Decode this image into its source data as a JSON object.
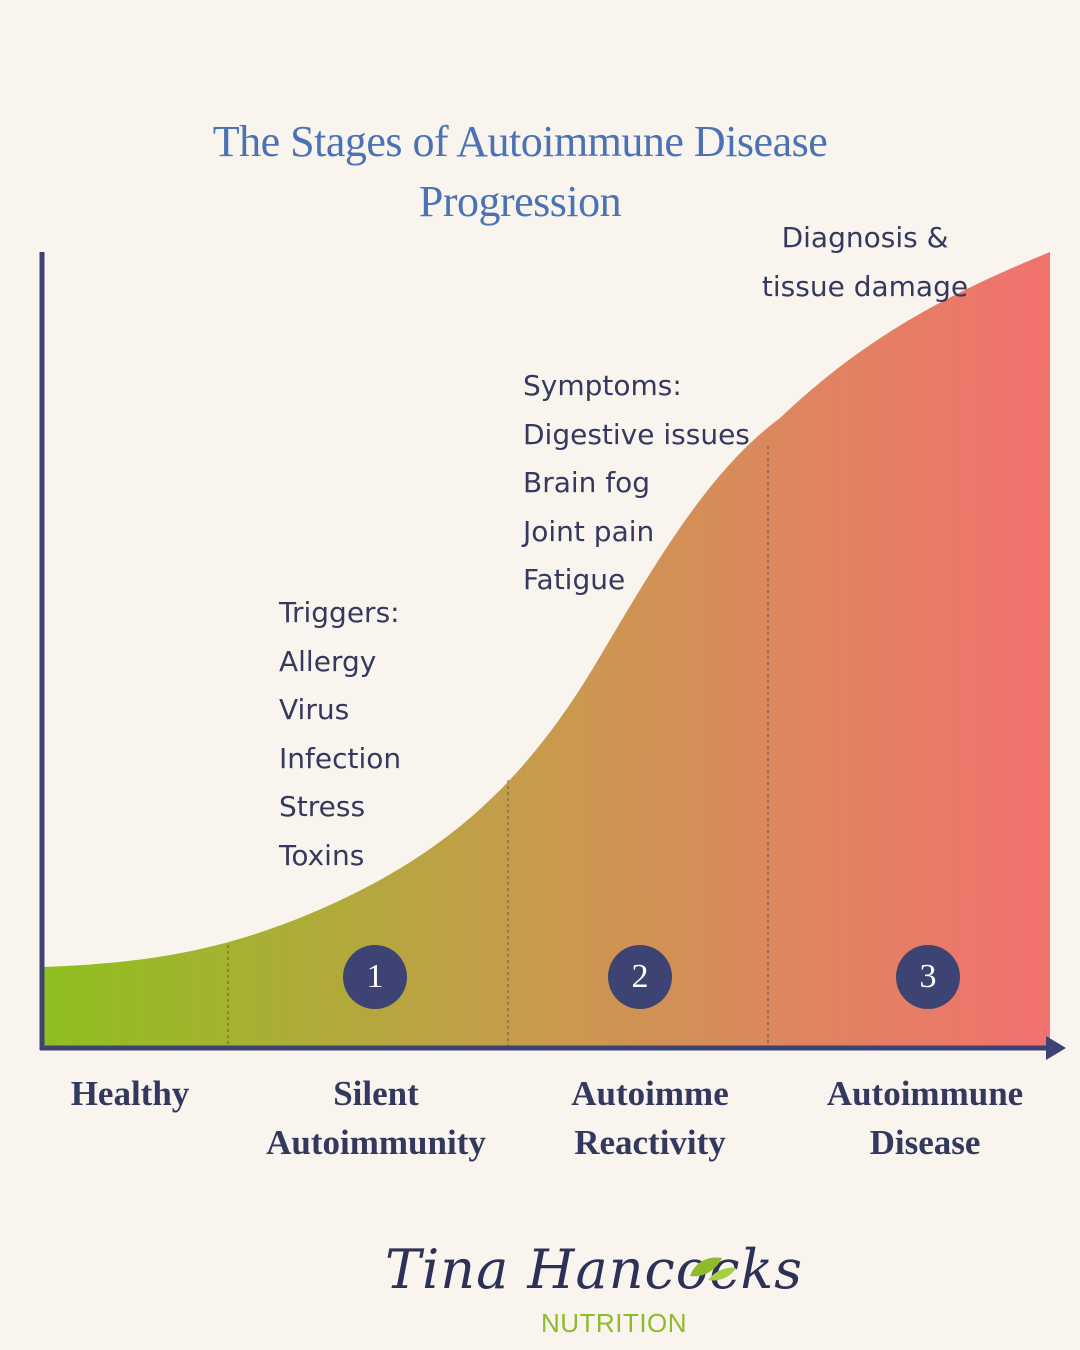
{
  "title": {
    "line1": "The Stages of Autoimmune Disease",
    "line2": "Progression"
  },
  "annotations": {
    "diagnosis": [
      "Diagnosis &",
      "tissue damage"
    ],
    "symptoms": [
      "Symptoms:",
      "Digestive issues",
      "Brain fog",
      "Joint pain",
      "Fatigue"
    ],
    "triggers": [
      "Triggers:",
      "Allergy",
      "Virus",
      "Infection",
      "Stress",
      "Toxins"
    ]
  },
  "badges": [
    "1",
    "2",
    "3"
  ],
  "stages": [
    [
      "Healthy"
    ],
    [
      "Silent",
      "Autoimmunity"
    ],
    [
      "Autoimme",
      "Reactivity"
    ],
    [
      "Autoimmune",
      "Disease"
    ]
  ],
  "colors": {
    "gradient_start": "#8fbf1f",
    "gradient_mid": "#c99a4e",
    "gradient_end": "#f2716f",
    "axis": "#3d4372",
    "title": "#4a72b5",
    "badge": "#3d4372"
  },
  "logo": {
    "script": "Tina Hancocks",
    "sub": "NUTRITION"
  }
}
